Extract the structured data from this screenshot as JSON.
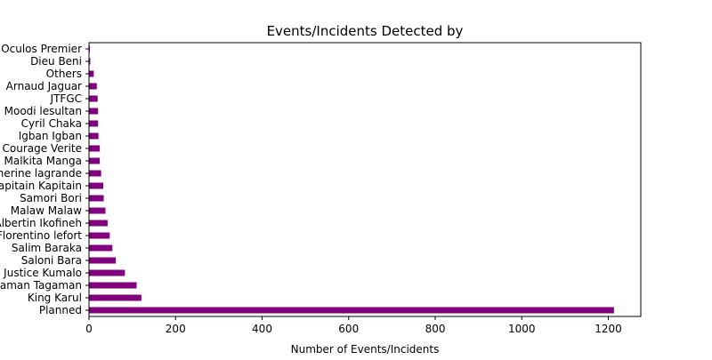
{
  "chart_data": {
    "type": "bar",
    "orientation": "horizontal",
    "title": "Events/Incidents Detected by",
    "xlabel": "Number of Events/Incidents",
    "ylabel": "",
    "xlim": [
      0,
      1275
    ],
    "x_ticks": [
      0,
      200,
      400,
      600,
      800,
      1000,
      1200
    ],
    "grid": false,
    "bar_color": "#800080",
    "categories": [
      "Planned",
      "King Karul",
      "Tagaman Tagaman",
      "Justice Kumalo",
      "Saloni Bara",
      "Salim Baraka",
      "Florentino lefort",
      "Albertin Ikofineh",
      "Malaw Malaw",
      "Samori Bori",
      "Kapitain Kapitain",
      "Catherine lagrande",
      "Malkita Manga",
      "Courage Verite",
      "Igban Igban",
      "Cyril Chaka",
      "Moodi lesultan",
      "JTFGC",
      "Arnaud Jaguar",
      "Others",
      "Dieu Beni",
      "Oculos Premier"
    ],
    "values": [
      1213,
      121,
      110,
      83,
      62,
      54,
      48,
      43,
      38,
      34,
      33,
      28,
      25,
      25,
      22,
      21,
      21,
      20,
      18,
      11,
      3,
      2
    ]
  }
}
